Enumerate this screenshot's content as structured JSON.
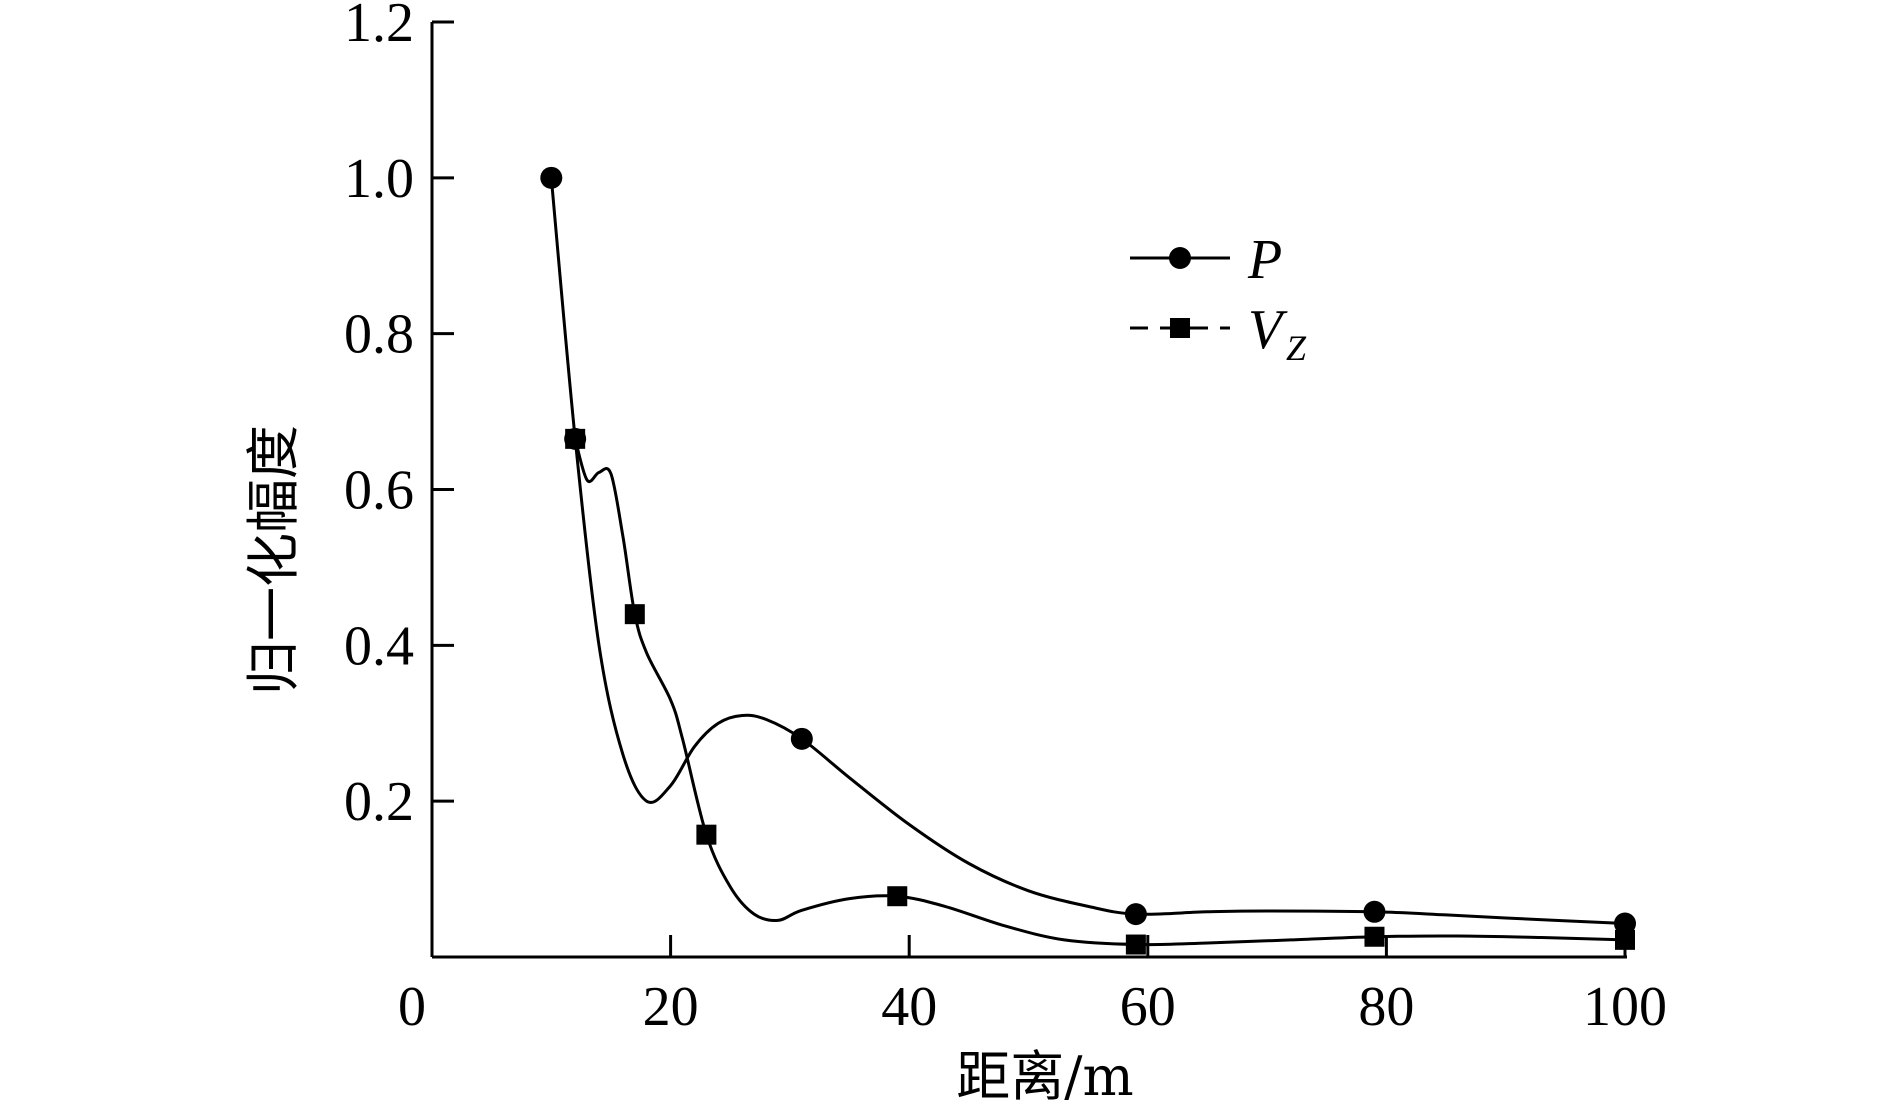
{
  "chart_data": {
    "type": "line",
    "title": "",
    "xlabel": "距离/m",
    "ylabel": "归一化幅度",
    "xlim": [
      0,
      100
    ],
    "ylim": [
      0,
      1.2
    ],
    "xticks": [
      "0",
      "20",
      "40",
      "60",
      "80",
      "100"
    ],
    "xtick_values": [
      0,
      20,
      40,
      60,
      80,
      100
    ],
    "yticks": [
      "0.2",
      "0.4",
      "0.6",
      "0.8",
      "1.0",
      "1.2"
    ],
    "ytick_values": [
      0.2,
      0.4,
      0.6,
      0.8,
      1.0,
      1.2
    ],
    "legend_position": "top-right",
    "series": [
      {
        "name": "P",
        "marker": "circle",
        "x": [
          10,
          12,
          31,
          59,
          79,
          100
        ],
        "y": [
          1.0,
          0.665,
          0.28,
          0.055,
          0.058,
          0.043
        ],
        "curve_x": [
          10,
          12,
          14,
          16,
          18,
          20,
          22,
          24,
          26,
          28,
          31,
          35,
          40,
          45,
          50,
          55,
          59,
          65,
          70,
          79,
          85,
          90,
          100
        ],
        "curve_y": [
          1.0,
          0.665,
          0.4,
          0.26,
          0.2,
          0.22,
          0.27,
          0.3,
          0.31,
          0.305,
          0.28,
          0.23,
          0.17,
          0.12,
          0.085,
          0.065,
          0.055,
          0.058,
          0.059,
          0.058,
          0.054,
          0.05,
          0.043
        ]
      },
      {
        "name": "V",
        "name_sub": "Z",
        "marker": "square",
        "x": [
          12,
          17,
          23,
          39,
          59,
          79,
          100
        ],
        "y": [
          0.665,
          0.44,
          0.157,
          0.078,
          0.016,
          0.026,
          0.022
        ],
        "curve_x": [
          12,
          13,
          14,
          15,
          16,
          17,
          18,
          20,
          21,
          23,
          25,
          27,
          29,
          31,
          35,
          39,
          43,
          48,
          53,
          59,
          65,
          72,
          79,
          86,
          93,
          100
        ],
        "curve_y": [
          0.665,
          0.612,
          0.622,
          0.62,
          0.54,
          0.44,
          0.39,
          0.33,
          0.28,
          0.157,
          0.09,
          0.055,
          0.047,
          0.06,
          0.075,
          0.078,
          0.065,
          0.04,
          0.022,
          0.016,
          0.018,
          0.022,
          0.026,
          0.027,
          0.025,
          0.022
        ]
      }
    ]
  }
}
